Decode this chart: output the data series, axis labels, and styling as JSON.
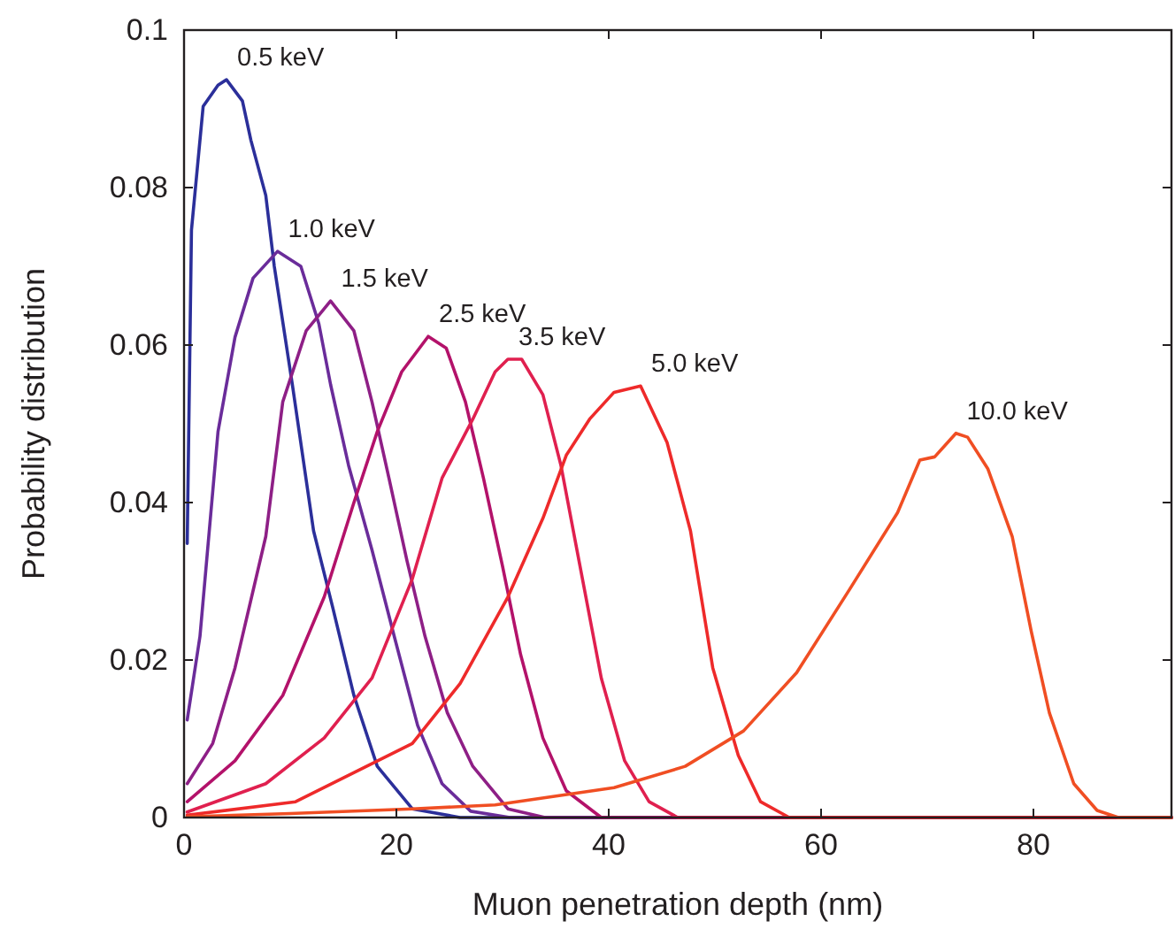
{
  "chart_data": {
    "type": "line",
    "xlabel": "Muon penetration depth (nm)",
    "ylabel": "Probability distribution",
    "xlim": [
      0,
      93
    ],
    "ylim": [
      0,
      0.1
    ],
    "xticks": [
      0,
      20,
      40,
      60,
      80
    ],
    "yticks": [
      0,
      0.02,
      0.04,
      0.06,
      0.08,
      0.1
    ],
    "grid": false,
    "line_style": "solid",
    "marker": "none",
    "series": [
      {
        "name": "0.5 keV",
        "color": "#2b2f9a",
        "x": [
          0.3,
          0.7,
          1.8,
          3.2,
          4,
          5.5,
          6.3,
          7.7,
          8.5,
          10.2,
          12.2,
          14,
          16,
          18.2,
          21.5,
          26,
          93
        ],
        "values": [
          0.0348,
          0.0746,
          0.0903,
          0.093,
          0.0937,
          0.091,
          0.086,
          0.079,
          0.07,
          0.055,
          0.0364,
          0.0267,
          0.0155,
          0.0065,
          0.0011,
          0,
          0
        ]
      },
      {
        "name": "1.0 keV",
        "color": "#6a2c9a",
        "x": [
          0.3,
          1.5,
          3.2,
          4.8,
          6.5,
          8.8,
          11,
          12.7,
          13.8,
          15.5,
          17.7,
          19.8,
          22,
          24.3,
          27,
          30.7,
          93
        ],
        "values": [
          0.0124,
          0.023,
          0.049,
          0.061,
          0.0685,
          0.0719,
          0.07,
          0.0627,
          0.055,
          0.0447,
          0.034,
          0.023,
          0.0117,
          0.0043,
          0.0008,
          0,
          0
        ]
      },
      {
        "name": "1.5 keV",
        "color": "#8e1f86",
        "x": [
          0.3,
          2.7,
          4.8,
          7.7,
          9.3,
          11.5,
          13.8,
          16,
          17.7,
          19.3,
          21,
          22.7,
          24.8,
          27.2,
          30.5,
          34,
          93
        ],
        "values": [
          0.0043,
          0.0094,
          0.019,
          0.0357,
          0.0528,
          0.0618,
          0.0656,
          0.0618,
          0.0528,
          0.0431,
          0.0326,
          0.023,
          0.0133,
          0.0065,
          0.0011,
          0,
          0
        ]
      },
      {
        "name": "2.5 keV",
        "color": "#b3126a",
        "x": [
          0.3,
          4.8,
          9.3,
          13.2,
          16,
          18.2,
          20.5,
          23,
          24.7,
          26.5,
          28.2,
          30,
          31.7,
          33.8,
          36,
          39.3,
          93
        ],
        "values": [
          0.002,
          0.0072,
          0.0155,
          0.028,
          0.04,
          0.049,
          0.0566,
          0.0611,
          0.0596,
          0.0528,
          0.0431,
          0.0319,
          0.0207,
          0.0101,
          0.0034,
          0,
          0
        ]
      },
      {
        "name": "3.5 keV",
        "color": "#e0204f",
        "x": [
          0.3,
          7.7,
          13.2,
          17.7,
          21.5,
          24.3,
          27.2,
          29.3,
          30.5,
          31.8,
          33.8,
          35.5,
          37.2,
          39.3,
          41.5,
          43.8,
          46.5,
          93
        ],
        "values": [
          0.0007,
          0.0043,
          0.0101,
          0.0177,
          0.0303,
          0.0431,
          0.0506,
          0.0566,
          0.0582,
          0.0582,
          0.0537,
          0.0447,
          0.0326,
          0.0177,
          0.0072,
          0.002,
          0,
          0
        ]
      },
      {
        "name": "5.0 keV",
        "color": "#ee2a2a",
        "x": [
          0.3,
          10.5,
          21.5,
          26,
          30.5,
          33.8,
          36,
          38.2,
          40.5,
          43,
          45.5,
          47.7,
          49.8,
          52.2,
          54.3,
          57,
          93
        ],
        "values": [
          0.0003,
          0.002,
          0.0094,
          0.017,
          0.028,
          0.038,
          0.046,
          0.0506,
          0.054,
          0.0548,
          0.0476,
          0.0364,
          0.019,
          0.0079,
          0.002,
          0,
          0
        ]
      },
      {
        "name": "10.0 keV",
        "color": "#f04e23",
        "x": [
          0.3,
          10,
          21.5,
          29.3,
          40.5,
          47.2,
          52.7,
          57.7,
          62.7,
          67.2,
          69.3,
          70.7,
          72.7,
          73.8,
          75.7,
          78,
          79.8,
          81.5,
          83.8,
          86,
          88,
          93
        ],
        "values": [
          0.0001,
          0.0005,
          0.0011,
          0.0016,
          0.0038,
          0.0065,
          0.011,
          0.0184,
          0.029,
          0.0387,
          0.0454,
          0.0458,
          0.0488,
          0.0483,
          0.0443,
          0.0357,
          0.0236,
          0.0133,
          0.0043,
          0.0009,
          0,
          0
        ]
      }
    ]
  }
}
